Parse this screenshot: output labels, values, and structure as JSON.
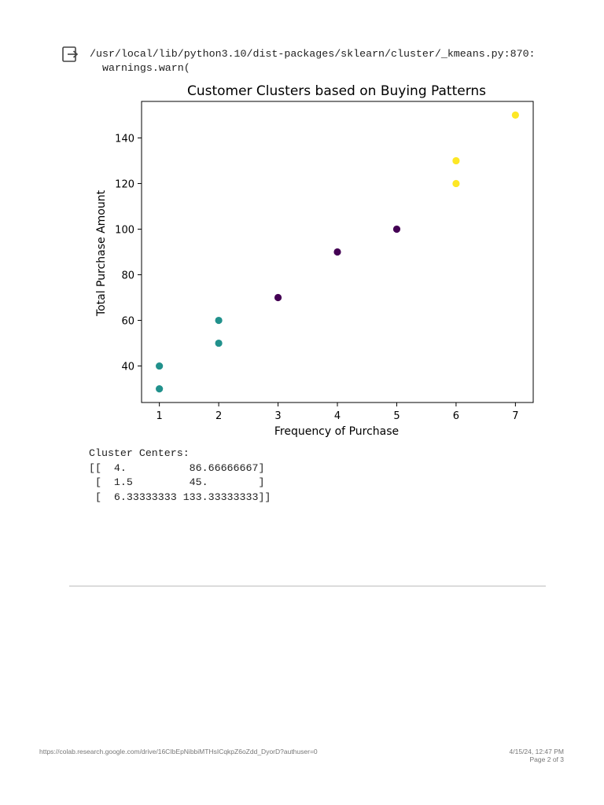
{
  "output": {
    "warning_path": "/usr/local/lib/python3.10/dist-packages/sklearn/cluster/_kmeans.py:870:",
    "warning_call": "warnings.warn("
  },
  "chart_data": {
    "type": "scatter",
    "title": "Customer Clusters based on Buying Patterns",
    "xlabel": "Frequency of Purchase",
    "ylabel": "Total Purchase Amount",
    "xlim": [
      0.7,
      7.3
    ],
    "ylim": [
      24,
      156
    ],
    "xticks": [
      1,
      2,
      3,
      4,
      5,
      6,
      7
    ],
    "yticks": [
      40,
      60,
      80,
      100,
      120,
      140
    ],
    "grid": false,
    "cluster_colors": [
      "#440154",
      "#21918c",
      "#fde725"
    ],
    "points": [
      {
        "x": 1,
        "y": 30,
        "cluster": 1
      },
      {
        "x": 1,
        "y": 40,
        "cluster": 1
      },
      {
        "x": 2,
        "y": 50,
        "cluster": 1
      },
      {
        "x": 2,
        "y": 60,
        "cluster": 1
      },
      {
        "x": 3,
        "y": 70,
        "cluster": 0
      },
      {
        "x": 4,
        "y": 90,
        "cluster": 0
      },
      {
        "x": 5,
        "y": 100,
        "cluster": 0
      },
      {
        "x": 6,
        "y": 120,
        "cluster": 2
      },
      {
        "x": 6,
        "y": 130,
        "cluster": 2
      },
      {
        "x": 7,
        "y": 150,
        "cluster": 2
      }
    ]
  },
  "cluster_centers": {
    "label": "Cluster Centers:",
    "lines": [
      "[[  4.          86.66666667]",
      " [  1.5         45.        ]",
      " [  6.33333333 133.33333333]]"
    ]
  },
  "footer": {
    "url": "https://colab.research.google.com/drive/16CIbEpNibbiMTHsICqkpZ6oZdd_DyorD?authuser=0",
    "datetime": "4/15/24, 12:47 PM",
    "page": "Page 2 of 3"
  }
}
